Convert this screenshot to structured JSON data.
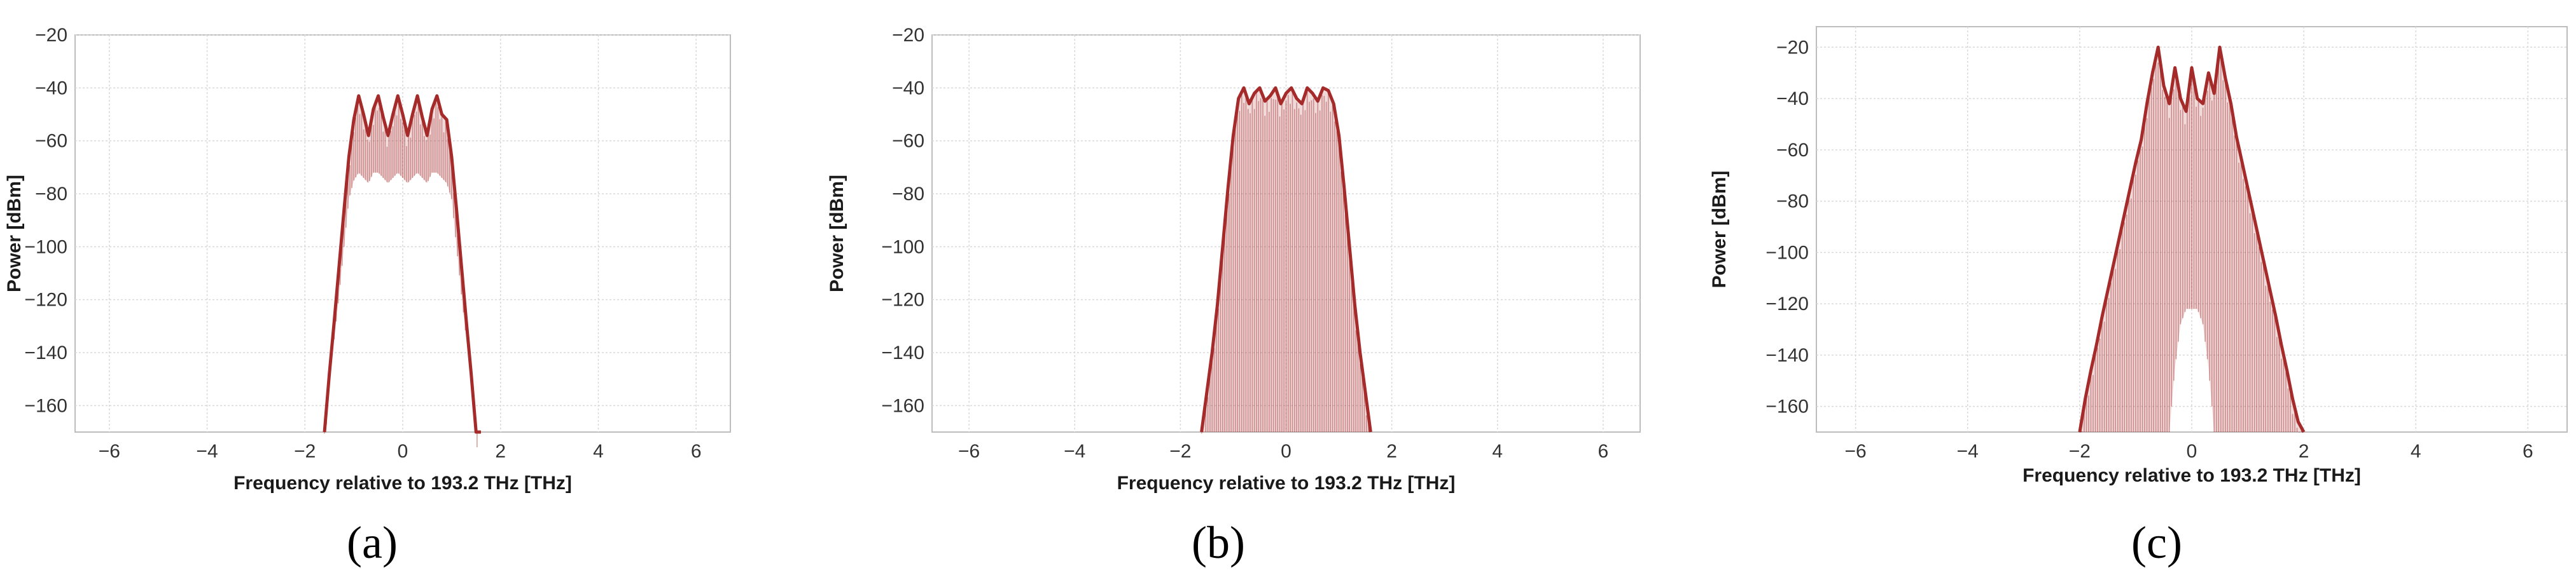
{
  "chart_data": [
    {
      "type": "line",
      "panel_label": "(a)",
      "xlabel": "Frequency relative to 193.2 THz [THz]",
      "ylabel": "Power [dBm]",
      "xlim": [
        -6.7,
        6.7
      ],
      "ylim": [
        -170,
        -20
      ],
      "x_ticks": [
        -6,
        -4,
        -2,
        0,
        2,
        4,
        6
      ],
      "y_ticks": [
        -20,
        -40,
        -60,
        -80,
        -100,
        -120,
        -140,
        -160
      ],
      "grid": true,
      "line_color": "#a52a2a",
      "series": [
        {
          "x": [
            -1.6,
            -1.5,
            -1.4,
            -1.3,
            -1.2,
            -1.1,
            -1.0,
            -0.9,
            -0.8,
            -0.7,
            -0.6,
            -0.5,
            -0.4,
            -0.3,
            -0.2,
            -0.1,
            0.0,
            0.1,
            0.2,
            0.3,
            0.4,
            0.5,
            0.6,
            0.7,
            0.8,
            0.9,
            1.0,
            1.1,
            1.2,
            1.3,
            1.4,
            1.5,
            1.6
          ],
          "y": [
            -170,
            -148,
            -128,
            -107,
            -86,
            -66,
            -52,
            -43,
            -50,
            -58,
            -48,
            -43,
            -51,
            -58,
            -50,
            -43,
            -50,
            -58,
            -50,
            -43,
            -51,
            -58,
            -48,
            -43,
            -50,
            -52,
            -66,
            -86,
            -107,
            -128,
            -148,
            -170,
            -170
          ],
          "envelope_low": [
            -170,
            -150,
            -135,
            -118,
            -100,
            -82,
            -75,
            -72,
            -74,
            -76,
            -72,
            -72,
            -74,
            -76,
            -74,
            -72,
            -74,
            -76,
            -74,
            -72,
            -74,
            -76,
            -72,
            -72,
            -74,
            -76,
            -82,
            -100,
            -118,
            -135,
            -150,
            -170,
            -170
          ]
        }
      ]
    },
    {
      "type": "line",
      "panel_label": "(b)",
      "xlabel": "Frequency relative to 193.2 THz [THz]",
      "ylabel": "Power [dBm]",
      "xlim": [
        -6.7,
        6.7
      ],
      "ylim": [
        -170,
        -20
      ],
      "x_ticks": [
        -6,
        -4,
        -2,
        0,
        2,
        4,
        6
      ],
      "y_ticks": [
        -20,
        -40,
        -60,
        -80,
        -100,
        -120,
        -140,
        -160
      ],
      "grid": true,
      "line_color": "#a52a2a",
      "series": [
        {
          "x": [
            -1.6,
            -1.5,
            -1.4,
            -1.3,
            -1.2,
            -1.1,
            -1.0,
            -0.9,
            -0.8,
            -0.7,
            -0.6,
            -0.5,
            -0.4,
            -0.3,
            -0.2,
            -0.1,
            0.0,
            0.1,
            0.2,
            0.3,
            0.4,
            0.5,
            0.6,
            0.7,
            0.8,
            0.9,
            1.0,
            1.1,
            1.2,
            1.3,
            1.4,
            1.5,
            1.6
          ],
          "y": [
            -170,
            -155,
            -140,
            -122,
            -100,
            -78,
            -58,
            -44,
            -40,
            -46,
            -42,
            -40,
            -45,
            -43,
            -40,
            -46,
            -42,
            -40,
            -44,
            -46,
            -40,
            -42,
            -45,
            -40,
            -41,
            -46,
            -58,
            -78,
            -100,
            -122,
            -140,
            -155,
            -170
          ],
          "envelope_low": [
            -170,
            -170,
            -170,
            -170,
            -170,
            -170,
            -170,
            -170,
            -170,
            -170,
            -170,
            -170,
            -170,
            -170,
            -170,
            -170,
            -170,
            -170,
            -170,
            -170,
            -170,
            -170,
            -170,
            -170,
            -170,
            -170,
            -170,
            -170,
            -170,
            -170,
            -170,
            -170,
            -170
          ]
        }
      ]
    },
    {
      "type": "line",
      "panel_label": "(c)",
      "xlabel": "Frequency relative to 193.2 THz [THz]",
      "ylabel": "Power [dBm]",
      "xlim": [
        -6.7,
        6.7
      ],
      "ylim": [
        -170,
        -12
      ],
      "x_ticks": [
        -6,
        -4,
        -2,
        0,
        2,
        4,
        6
      ],
      "y_ticks": [
        -20,
        -40,
        -60,
        -80,
        -100,
        -120,
        -140,
        -160
      ],
      "grid": true,
      "line_color": "#a52a2a",
      "series": [
        {
          "x": [
            -2.0,
            -1.9,
            -1.8,
            -1.7,
            -1.6,
            -1.5,
            -1.4,
            -1.3,
            -1.2,
            -1.1,
            -1.0,
            -0.9,
            -0.8,
            -0.7,
            -0.6,
            -0.5,
            -0.4,
            -0.3,
            -0.2,
            -0.1,
            0.0,
            0.1,
            0.2,
            0.3,
            0.4,
            0.5,
            0.6,
            0.7,
            0.8,
            0.9,
            1.0,
            1.1,
            1.2,
            1.3,
            1.4,
            1.5,
            1.6,
            1.7,
            1.8,
            1.9,
            2.0
          ],
          "y": [
            -170,
            -157,
            -146,
            -136,
            -125,
            -115,
            -105,
            -95,
            -85,
            -75,
            -65,
            -56,
            -42,
            -30,
            -20,
            -35,
            -42,
            -28,
            -40,
            -45,
            -28,
            -40,
            -42,
            -30,
            -38,
            -20,
            -32,
            -42,
            -55,
            -65,
            -75,
            -85,
            -95,
            -105,
            -115,
            -125,
            -136,
            -146,
            -157,
            -166,
            -170
          ],
          "envelope_low": [
            -170,
            -170,
            -170,
            -170,
            -170,
            -170,
            -170,
            -170,
            -170,
            -170,
            -170,
            -170,
            -170,
            -170,
            -170,
            -170,
            -170,
            -145,
            -128,
            -122,
            -122,
            -122,
            -128,
            -145,
            -170,
            -170,
            -170,
            -170,
            -170,
            -170,
            -170,
            -170,
            -170,
            -170,
            -170,
            -170,
            -170,
            -170,
            -170,
            -170,
            -170
          ]
        }
      ]
    }
  ]
}
